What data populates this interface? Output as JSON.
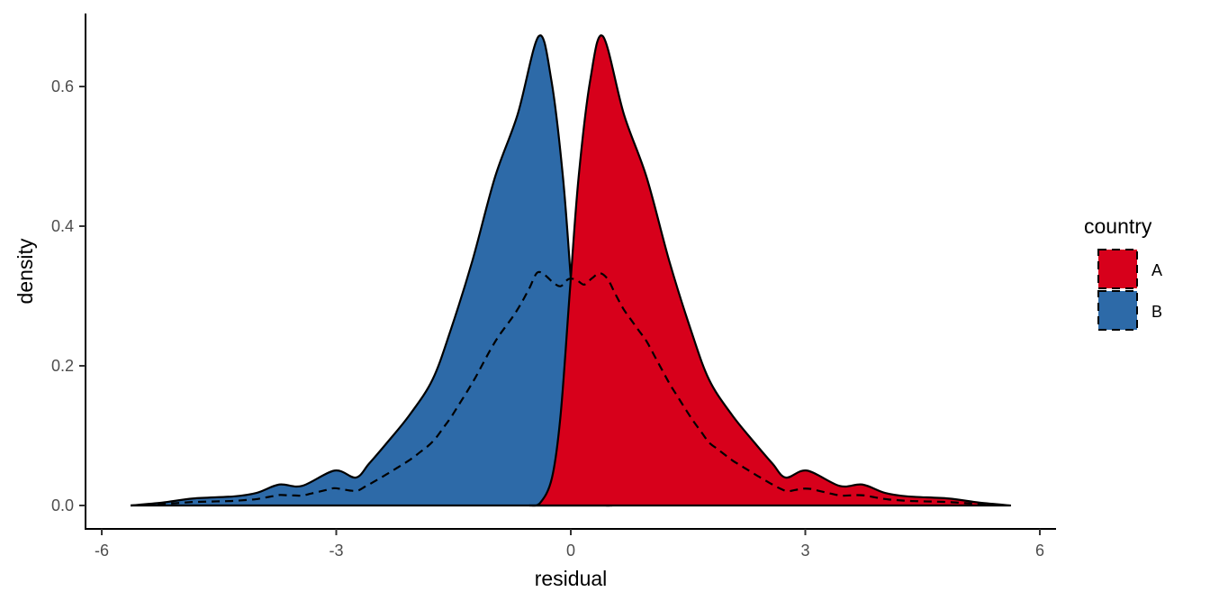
{
  "chart_data": {
    "type": "area",
    "title": "",
    "xlabel": "residual",
    "ylabel": "density",
    "xlim": [
      -6.4,
      6.0
    ],
    "ylim": [
      -0.035,
      0.7
    ],
    "x_ticks": [
      -6,
      -3,
      0,
      3,
      6
    ],
    "x_tick_labels": [
      "-6",
      "-3",
      "0",
      "3",
      "6"
    ],
    "y_ticks": [
      0.0,
      0.2,
      0.4,
      0.6
    ],
    "y_tick_labels": [
      "0.0",
      "0.2",
      "0.4",
      "0.6"
    ],
    "grid": false,
    "legend": {
      "title": "country",
      "placement": "right",
      "entries": [
        "A",
        "B"
      ]
    },
    "colors": {
      "A": "#d7001b",
      "B": "#2d6aa8"
    },
    "series": [
      {
        "name": "A",
        "x": [
          -0.53,
          -0.39,
          -0.24,
          -0.13,
          -0.01,
          0.1,
          0.25,
          0.41,
          0.68,
          0.97,
          1.26,
          1.54,
          1.77,
          2.06,
          2.35,
          2.58,
          2.75,
          3.02,
          3.44,
          3.73,
          4.02,
          4.31,
          4.83,
          5.23,
          5.63
        ],
        "y": [
          0,
          0.004,
          0.04,
          0.13,
          0.31,
          0.47,
          0.61,
          0.672,
          0.56,
          0.47,
          0.35,
          0.25,
          0.18,
          0.13,
          0.09,
          0.06,
          0.04,
          0.05,
          0.028,
          0.03,
          0.018,
          0.013,
          0.01,
          0.004,
          0
        ]
      },
      {
        "name": "B",
        "x": [
          -5.63,
          -5.23,
          -4.83,
          -4.31,
          -4.02,
          -3.73,
          -3.44,
          -3.02,
          -2.75,
          -2.58,
          -2.35,
          -2.06,
          -1.77,
          -1.54,
          -1.26,
          -0.97,
          -0.68,
          -0.41,
          -0.25,
          -0.1,
          0.01,
          0.13,
          0.24,
          0.39,
          0.53
        ],
        "y": [
          0,
          0.004,
          0.01,
          0.013,
          0.018,
          0.03,
          0.028,
          0.05,
          0.04,
          0.06,
          0.09,
          0.13,
          0.18,
          0.25,
          0.35,
          0.47,
          0.56,
          0.672,
          0.61,
          0.47,
          0.31,
          0.13,
          0.04,
          0.004,
          0
        ]
      }
    ],
    "overall_line": {
      "style": "dashed",
      "description_value": "mean of A and B densities"
    }
  }
}
